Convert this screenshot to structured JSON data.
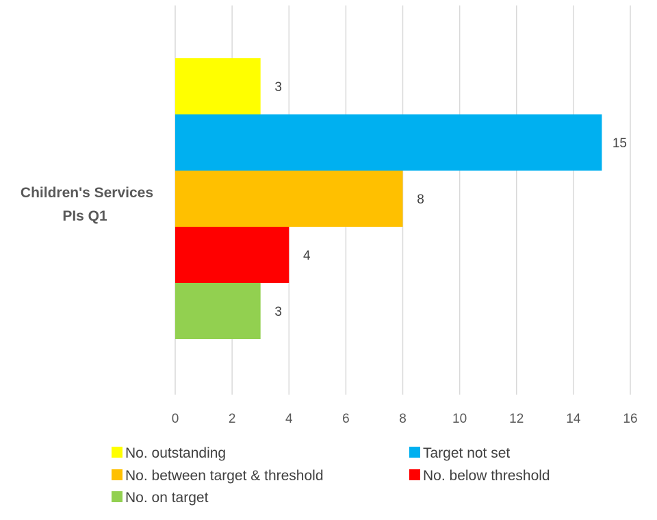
{
  "chart_data": {
    "type": "bar",
    "orientation": "horizontal",
    "categories": [
      "Children's Services PIs Q1"
    ],
    "category_label_lines": [
      "Children's Services",
      "PIs Q1"
    ],
    "series": [
      {
        "name": "No. outstanding",
        "values": [
          3
        ],
        "color": "#FFFF00"
      },
      {
        "name": "Target not set",
        "values": [
          15
        ],
        "color": "#00B0F0"
      },
      {
        "name": "No. between target & threshold",
        "values": [
          8
        ],
        "color": "#FFC000"
      },
      {
        "name": "No. below threshold",
        "values": [
          4
        ],
        "color": "#FF0000"
      },
      {
        "name": "No. on target",
        "values": [
          3
        ],
        "color": "#92D050"
      }
    ],
    "xlim": [
      0,
      16
    ],
    "xticks": [
      0,
      2,
      4,
      6,
      8,
      10,
      12,
      14,
      16
    ],
    "grid": true,
    "data_labels": true,
    "legend_position": "bottom",
    "title": "",
    "xlabel": "",
    "ylabel": ""
  }
}
